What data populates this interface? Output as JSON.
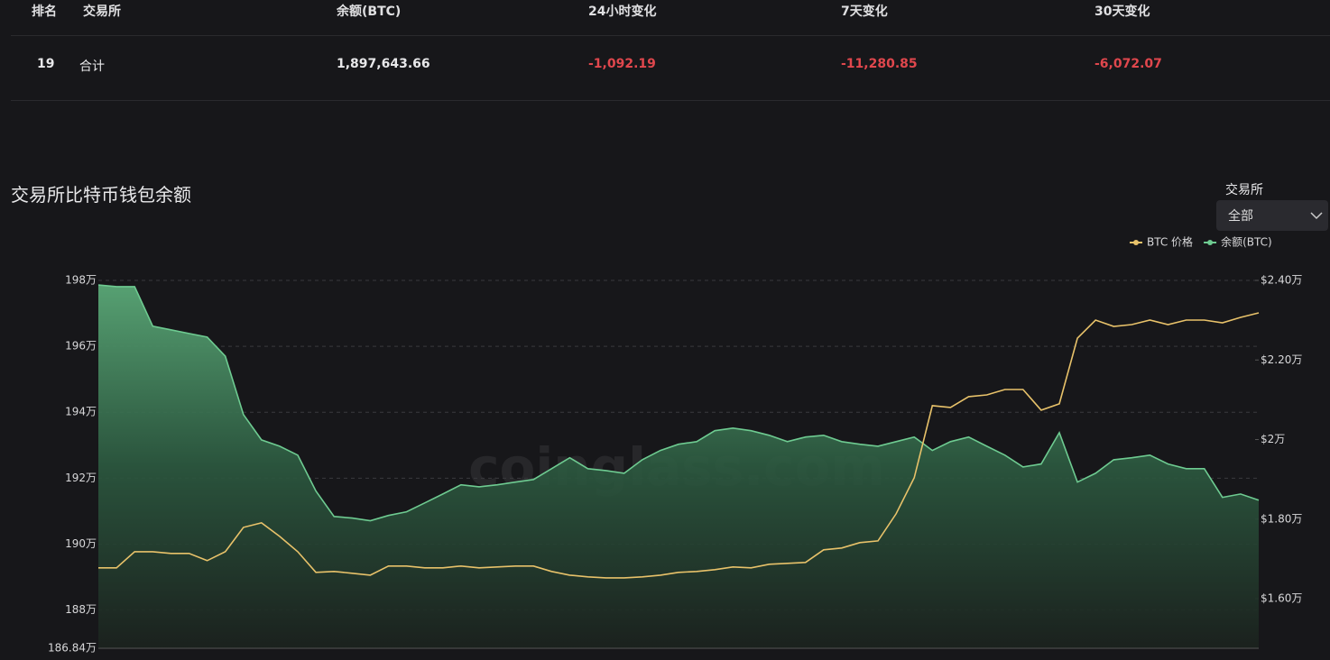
{
  "table": {
    "headers": [
      "排名",
      "交易所",
      "余额(BTC)",
      "24小时变化",
      "7天变化",
      "30天变化"
    ],
    "rows": [
      [
        "19",
        "合计",
        "1,897,643.66",
        "-1,092.19",
        "-11,280.85",
        "-6,072.07"
      ]
    ]
  },
  "filter": {
    "label": "交易所",
    "value": "全部"
  },
  "chart_data": {
    "type": "line",
    "title": "交易所比特币钱包余额",
    "watermark": "coinglass.com",
    "categories": [
      null,
      null,
      null,
      null,
      null,
      null,
      null,
      null,
      null,
      null,
      null,
      null,
      null,
      null,
      null,
      null,
      null,
      null,
      null,
      null,
      null,
      null,
      null,
      null,
      null,
      null,
      null,
      null,
      null,
      null,
      null,
      null,
      null,
      null,
      null,
      null,
      null,
      null,
      null,
      null,
      null,
      null,
      null,
      null,
      null,
      null,
      null,
      null,
      null,
      null,
      null,
      null,
      null,
      null,
      null,
      null,
      null,
      null,
      null,
      null,
      null,
      null,
      null,
      null,
      null
    ],
    "series": [
      {
        "name": "BTC 价格",
        "color": "#e8c26a",
        "axis": "y2",
        "values": [
          16775,
          16775,
          17182,
          17182,
          17137,
          17137,
          16956,
          17182,
          17794,
          17907,
          17567,
          17182,
          16661,
          16684,
          16639,
          16593,
          16820,
          16820,
          16775,
          16775,
          16820,
          16775,
          16797,
          16820,
          16820,
          16684,
          16593,
          16548,
          16525,
          16525,
          16548,
          16593,
          16661,
          16684,
          16729,
          16797,
          16775,
          16865,
          16888,
          16911,
          17228,
          17273,
          17409,
          17454,
          18134,
          19040,
          20852,
          20806,
          21078,
          21123,
          21259,
          21259,
          20738,
          20897,
          22550,
          23003,
          22845,
          22890,
          23003,
          22890,
          23003,
          23003,
          22935,
          23071,
          23185
        ]
      },
      {
        "name": "余额(BTC)",
        "color": "#6ecb91",
        "values": [
          1978600,
          1978100,
          1978100,
          1966100,
          1965000,
          1963900,
          1962800,
          1957000,
          1939300,
          1931600,
          1929700,
          1927000,
          1916100,
          1908400,
          1907900,
          1907100,
          1908700,
          1909800,
          1912500,
          1915200,
          1918000,
          1917400,
          1918000,
          1918800,
          1919600,
          1922900,
          1926200,
          1922900,
          1922300,
          1921500,
          1925600,
          1928400,
          1930300,
          1931100,
          1934400,
          1935200,
          1934400,
          1933000,
          1931100,
          1932500,
          1933000,
          1931100,
          1930300,
          1929700,
          1931100,
          1932500,
          1928400,
          1931100,
          1932500,
          1929700,
          1927000,
          1923400,
          1924300,
          1933800,
          1918800,
          1921500,
          1925600,
          1926200,
          1927000,
          1924300,
          1922900,
          1922900,
          1914200,
          1915200,
          1913300
        ]
      }
    ],
    "ylim": [
      1868400,
      1980000
    ],
    "yticks": [
      {
        "value": 1868400,
        "label": "186.84万"
      },
      {
        "value": 1880000,
        "label": "188万"
      },
      {
        "value": 1900000,
        "label": "190万"
      },
      {
        "value": 1920000,
        "label": "192万"
      },
      {
        "value": 1940000,
        "label": "194万"
      },
      {
        "value": 1960000,
        "label": "196万"
      },
      {
        "value": 1980000,
        "label": "198万"
      }
    ],
    "y2lim": [
      14754,
      24000
    ],
    "y2ticks": [
      {
        "value": 16000,
        "label": "$1.60万"
      },
      {
        "value": 18000,
        "label": "$1.80万"
      },
      {
        "value": 20000,
        "label": "$2万"
      },
      {
        "value": 22000,
        "label": "$2.20万"
      },
      {
        "value": 24000,
        "label": "$2.40万"
      }
    ],
    "grid": true,
    "legend": "top-right"
  }
}
